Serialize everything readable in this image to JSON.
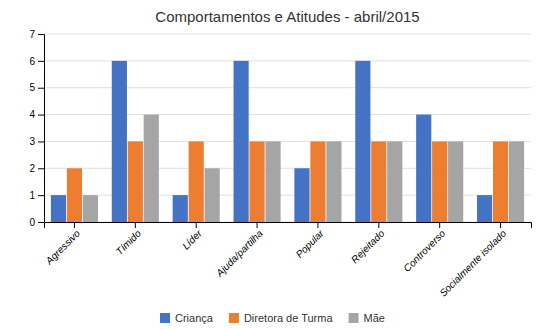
{
  "chart_data": {
    "type": "bar",
    "title": "Comportamentos e Atitudes - abril/2015",
    "categories": [
      "Agressivo",
      "Tímido",
      "Líder",
      "Ajuda/partilha",
      "Popular",
      "Rejeitado",
      "Controverso",
      "Socialmente isolado"
    ],
    "series": [
      {
        "name": "Criança",
        "color": "#4472C4",
        "values": [
          1,
          6,
          1,
          6,
          2,
          6,
          4,
          1
        ]
      },
      {
        "name": "Diretora de Turma",
        "color": "#ED7D31",
        "values": [
          2,
          3,
          3,
          3,
          3,
          3,
          3,
          3
        ]
      },
      {
        "name": "Mãe",
        "color": "#A5A5A5",
        "values": [
          1,
          4,
          2,
          3,
          3,
          3,
          3,
          3
        ]
      }
    ],
    "ylim": [
      0,
      7
    ],
    "yticks": [
      0,
      1,
      2,
      3,
      4,
      5,
      6,
      7
    ],
    "grid": true,
    "legend": "bottom"
  }
}
